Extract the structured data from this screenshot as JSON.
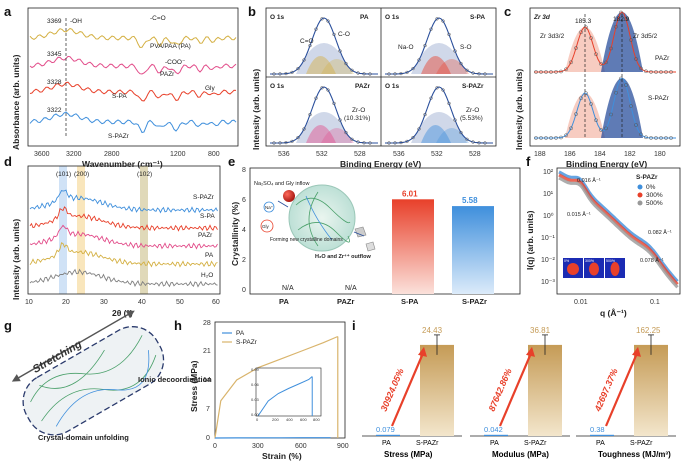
{
  "panel_labels": [
    "a",
    "b",
    "c",
    "d",
    "e",
    "f",
    "g",
    "h",
    "i"
  ],
  "colors": {
    "PA": "#d4b043",
    "PAZr": "#e24d8a",
    "S-PA": "#e8402a",
    "S-PAZr": "#3f8fdc",
    "gray": "#808080",
    "O_peak": "#2a4f9c"
  },
  "chart_data": [
    {
      "panel": "a",
      "type": "line",
      "xlabel": "Wavenumber (cm⁻¹)",
      "ylabel": "Absorbance (arb. units)",
      "xlim": [
        3900,
        500
      ],
      "x_ticks": [
        "3600",
        "3200",
        "2800",
        "1200",
        "800"
      ],
      "series": [
        {
          "name": "PVA/PAA (PA)",
          "color": "#d4b043",
          "peak": "3369"
        },
        {
          "name": "PAZr",
          "color": "#e24d8a",
          "peak": "3345"
        },
        {
          "name": "S-PA",
          "color": "#e8402a",
          "peak": "3328"
        },
        {
          "name": "S-PAZr",
          "color": "#3f8fdc",
          "peak": "3322"
        }
      ],
      "annotations": [
        "-OH",
        "-C=O",
        "-COO⁻",
        "Gly"
      ]
    },
    {
      "panel": "b",
      "type": "line",
      "xlabel": "Binding Energy (eV)",
      "ylabel": "Intensity (arb. units)",
      "x_ticks": [
        "536",
        "532",
        "528"
      ],
      "subplots": [
        {
          "title": "O 1s",
          "sample": "PA",
          "color": "#d4b043",
          "labels": [
            "C=O",
            "C-O"
          ]
        },
        {
          "title": "O 1s",
          "sample": "S-PA",
          "color": "#e8402a",
          "labels": [
            "Na-O",
            "S-O"
          ]
        },
        {
          "title": "O 1s",
          "sample": "PAZr",
          "color": "#e24d8a",
          "labels": [
            "Zr-O",
            "(10.31%)"
          ]
        },
        {
          "title": "O 1s",
          "sample": "S-PAZr",
          "color": "#3f8fdc",
          "labels": [
            "Zr-O",
            "(5.53%)"
          ]
        }
      ]
    },
    {
      "panel": "c",
      "type": "line",
      "title": "Zr 3d",
      "xlabel": "Binding Energy (eV)",
      "ylabel": "Intensity (arb. units)",
      "x_ticks": [
        "188",
        "186",
        "184",
        "182",
        "180"
      ],
      "peaks": [
        "185.3",
        "182.9"
      ],
      "peak_labels": [
        "Zr 3d3/2",
        "Zr 3d5/2"
      ],
      "series": [
        {
          "name": "PAZr"
        },
        {
          "name": "S-PAZr"
        }
      ]
    },
    {
      "panel": "d",
      "type": "line",
      "xlabel": "2θ (°)",
      "ylabel": "Intensity (arb. units)",
      "xlim": [
        10,
        60
      ],
      "x_ticks": [
        "10",
        "20",
        "30",
        "40",
        "50",
        "60"
      ],
      "peak_labels": [
        "(101)",
        "(200)",
        "(102)"
      ],
      "series": [
        {
          "name": "S-PAZr"
        },
        {
          "name": "S-PA"
        },
        {
          "name": "PAZr"
        },
        {
          "name": "PA"
        },
        {
          "name": "H₂O"
        }
      ]
    },
    {
      "panel": "e",
      "type": "bar",
      "ylabel": "Crystallinity (%)",
      "categories": [
        "PA",
        "PAZr",
        "S-PA",
        "S-PAZr"
      ],
      "values": [
        null,
        null,
        6.01,
        5.58
      ],
      "value_labels": [
        "N/A",
        "N/A",
        "6.01",
        "5.58"
      ],
      "ylim": [
        0,
        8
      ],
      "y_ticks": [
        "0",
        "2",
        "4",
        "6",
        "8"
      ],
      "schematic": {
        "inflow": "Na₂SO₄ and Gly inflow",
        "domains": "Forming new crystalline domains",
        "outflow": "H₂O and Zr⁴⁺ outflow",
        "ion": "Na⁺",
        "gly": "Gly"
      }
    },
    {
      "panel": "f",
      "type": "line",
      "xlabel": "q (Å⁻¹)",
      "ylabel": "I(q) (arb. units)",
      "x_ticks": [
        "0.01",
        "0.1"
      ],
      "y_ticks": [
        "10²",
        "10¹",
        "10⁰",
        "10⁻¹",
        "10⁻²",
        "10⁻³"
      ],
      "legend_title": "S-PAZr",
      "series": [
        {
          "name": "0%"
        },
        {
          "name": "300%"
        },
        {
          "name": "500%"
        }
      ],
      "annotations": [
        "0.016 Å⁻¹",
        "0.015 Å⁻¹",
        "0.082 Å⁻¹",
        "0.078 Å⁻¹"
      ],
      "inset_labels": [
        "0%",
        "300%",
        "500%"
      ]
    },
    {
      "panel": "h",
      "type": "line",
      "xlabel": "Strain (%)",
      "ylabel": "Stress (MPa)",
      "xlim": [
        0,
        900
      ],
      "ylim": [
        0,
        28
      ],
      "x_ticks": [
        "0",
        "300",
        "600",
        "900"
      ],
      "y_ticks": [
        "0",
        "7",
        "14",
        "21",
        "28"
      ],
      "series": [
        {
          "name": "PA",
          "x": [
            0,
            150,
            300,
            450,
            600,
            750,
            800
          ],
          "y": [
            0,
            0.03,
            0.045,
            0.055,
            0.064,
            0.073,
            0.079
          ]
        },
        {
          "name": "S-PAZr",
          "x": [
            0,
            40,
            150,
            300,
            450,
            600,
            750,
            850
          ],
          "y": [
            0,
            9,
            14,
            17,
            19,
            21,
            23,
            24.5
          ]
        }
      ],
      "inset": {
        "x_ticks": [
          "0",
          "200",
          "400",
          "600",
          "800"
        ],
        "y_ticks": [
          "0.09",
          "0.06",
          "0.03",
          "0.00"
        ]
      }
    },
    {
      "panel": "i",
      "type": "bar",
      "categories": [
        "PA",
        "S-PAZr"
      ],
      "groups": [
        {
          "xlabel": "Stress (MPa)",
          "values": [
            0.079,
            24.43
          ],
          "value_labels": [
            "0.079",
            "24.43"
          ],
          "increase": "30924.05%"
        },
        {
          "xlabel": "Modulus (MPa)",
          "values": [
            0.042,
            36.81
          ],
          "value_labels": [
            "0.042",
            "36.81"
          ],
          "increase": "87642.86%"
        },
        {
          "xlabel": "Toughness (MJ/m³)",
          "values": [
            0.38,
            162.25
          ],
          "value_labels": [
            "0.38",
            "162.25"
          ],
          "increase": "42697.37%"
        }
      ]
    }
  ],
  "schematic_g": {
    "title": "Stretching",
    "labels": [
      "Ionic decoordination",
      "Crystal-domain unfolding"
    ]
  }
}
